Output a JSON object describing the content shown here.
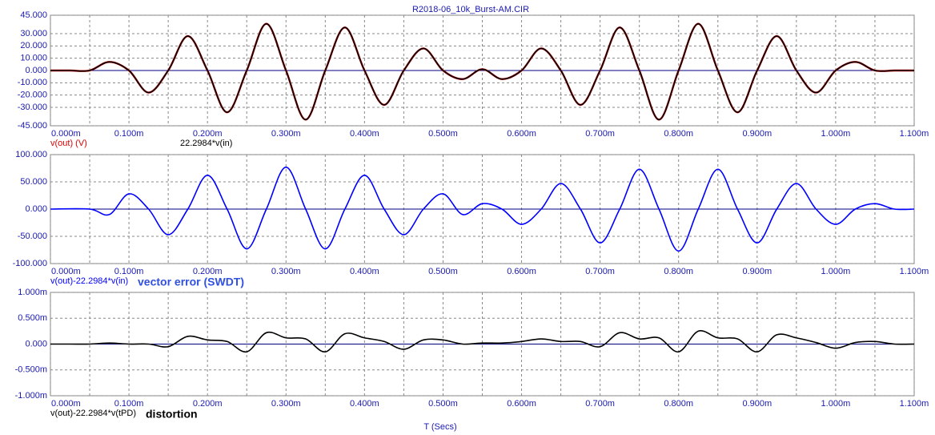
{
  "chart_data": [
    {
      "type": "line",
      "title": "R2018-06_10k_Burst-AM.CIR",
      "x": [
        0,
        0.025,
        0.05,
        0.075,
        0.1,
        0.125,
        0.15,
        0.175,
        0.2,
        0.225,
        0.25,
        0.275,
        0.3,
        0.325,
        0.35,
        0.375,
        0.4,
        0.425,
        0.45,
        0.475,
        0.5,
        0.525,
        0.55,
        0.575,
        0.6,
        0.625,
        0.65,
        0.675,
        0.7,
        0.725,
        0.75,
        0.775,
        0.8,
        0.825,
        0.85,
        0.875,
        0.9,
        0.925,
        0.95,
        0.975,
        1.0,
        1.025,
        1.05,
        1.075,
        1.1
      ],
      "series": [
        {
          "name": "v(out) (V)",
          "color": "#e00000",
          "values": [
            0,
            0,
            0,
            7,
            0,
            -18,
            0,
            28,
            0,
            -34,
            0,
            38,
            0,
            -40,
            0,
            35,
            0,
            -28,
            0,
            18,
            0,
            -7,
            1,
            -7,
            0,
            18,
            0,
            -28,
            0,
            35,
            0,
            -40,
            0,
            38,
            0,
            -34,
            0,
            28,
            0,
            -18,
            0,
            7,
            0,
            0,
            0
          ]
        },
        {
          "name": "22.2984*v(in)",
          "color": "#000000",
          "values": [
            0,
            0,
            0,
            7,
            0,
            -18,
            0,
            28,
            0,
            -34,
            0,
            38,
            0,
            -40,
            0,
            35,
            0,
            -28,
            0,
            18,
            0,
            -7,
            1,
            -7,
            0,
            18,
            0,
            -28,
            0,
            35,
            0,
            -40,
            0,
            38,
            0,
            -34,
            0,
            28,
            0,
            -18,
            0,
            7,
            0,
            0,
            0
          ]
        }
      ],
      "xlim": [
        0,
        1.1
      ],
      "xticks": [
        {
          "value": 0,
          "label": "0.000m"
        },
        {
          "value": 0.1,
          "label": "0.100m"
        },
        {
          "value": 0.2,
          "label": "0.200m"
        },
        {
          "value": 0.3,
          "label": "0.300m"
        },
        {
          "value": 0.4,
          "label": "0.400m"
        },
        {
          "value": 0.5,
          "label": "0.500m"
        },
        {
          "value": 0.6,
          "label": "0.600m"
        },
        {
          "value": 0.7,
          "label": "0.700m"
        },
        {
          "value": 0.8,
          "label": "0.800m"
        },
        {
          "value": 0.9,
          "label": "0.900m"
        },
        {
          "value": 1.0,
          "label": "1.000m"
        },
        {
          "value": 1.1,
          "label": "1.100m"
        }
      ],
      "xgrid_minor": [
        0.05,
        0.15,
        0.25,
        0.35,
        0.45,
        0.55,
        0.65,
        0.75,
        0.85,
        0.95,
        1.05
      ],
      "ylim": [
        -45,
        45
      ],
      "yticks": [
        {
          "value": 45,
          "label": "45.000"
        },
        {
          "value": 30,
          "label": "30.000"
        },
        {
          "value": 20,
          "label": "20.000"
        },
        {
          "value": 10,
          "label": "10.000"
        },
        {
          "value": 0,
          "label": "0.000"
        },
        {
          "value": -10,
          "label": "-10.000"
        },
        {
          "value": -20,
          "label": "-20.000"
        },
        {
          "value": -30,
          "label": "-30.000"
        },
        {
          "value": -45,
          "label": "-45.000"
        }
      ],
      "grid": true
    },
    {
      "type": "line",
      "annotation": "vector error (SWDT)",
      "x": [
        0,
        0.05,
        0.075,
        0.1,
        0.125,
        0.15,
        0.175,
        0.2,
        0.225,
        0.25,
        0.275,
        0.3,
        0.325,
        0.35,
        0.375,
        0.4,
        0.425,
        0.45,
        0.475,
        0.5,
        0.525,
        0.55,
        0.575,
        0.6,
        0.625,
        0.65,
        0.675,
        0.7,
        0.725,
        0.75,
        0.775,
        0.8,
        0.825,
        0.85,
        0.875,
        0.9,
        0.925,
        0.95,
        0.975,
        1.0,
        1.025,
        1.05,
        1.075,
        1.1
      ],
      "series": [
        {
          "name": "v(out)-22.2984*v(in)",
          "color": "#0000ff",
          "values": [
            0,
            0,
            -10,
            28,
            0,
            -47,
            0,
            62,
            0,
            -73,
            0,
            77,
            0,
            -73,
            0,
            62,
            0,
            -47,
            0,
            28,
            -10,
            10,
            0,
            -28,
            0,
            47,
            0,
            -62,
            0,
            73,
            0,
            -77,
            0,
            73,
            0,
            -62,
            0,
            47,
            0,
            -28,
            0,
            10,
            0,
            0
          ]
        }
      ],
      "xlim": [
        0,
        1.1
      ],
      "xticks": [
        {
          "value": 0,
          "label": "0.000m"
        },
        {
          "value": 0.1,
          "label": "0.100m"
        },
        {
          "value": 0.2,
          "label": "0.200m"
        },
        {
          "value": 0.3,
          "label": "0.300m"
        },
        {
          "value": 0.4,
          "label": "0.400m"
        },
        {
          "value": 0.5,
          "label": "0.500m"
        },
        {
          "value": 0.6,
          "label": "0.600m"
        },
        {
          "value": 0.7,
          "label": "0.700m"
        },
        {
          "value": 0.8,
          "label": "0.800m"
        },
        {
          "value": 0.9,
          "label": "0.900m"
        },
        {
          "value": 1.0,
          "label": "1.000m"
        },
        {
          "value": 1.1,
          "label": "1.100m"
        }
      ],
      "xgrid_minor": [
        0.05,
        0.15,
        0.25,
        0.35,
        0.45,
        0.55,
        0.65,
        0.75,
        0.85,
        0.95,
        1.05
      ],
      "ylim": [
        -100,
        100
      ],
      "yticks": [
        {
          "value": 100,
          "label": "100.000"
        },
        {
          "value": 50,
          "label": "50.000"
        },
        {
          "value": 0,
          "label": "0.000"
        },
        {
          "value": -50,
          "label": "-50.000"
        },
        {
          "value": -100,
          "label": "-100.000"
        }
      ],
      "grid": true
    },
    {
      "type": "line",
      "annotation": "distortion",
      "xlabel": "T (Secs)",
      "x": [
        0,
        0.025,
        0.05,
        0.075,
        0.1,
        0.125,
        0.15,
        0.175,
        0.2,
        0.225,
        0.25,
        0.275,
        0.3,
        0.325,
        0.35,
        0.375,
        0.4,
        0.425,
        0.45,
        0.475,
        0.5,
        0.525,
        0.55,
        0.575,
        0.6,
        0.625,
        0.65,
        0.675,
        0.7,
        0.725,
        0.75,
        0.775,
        0.8,
        0.825,
        0.85,
        0.875,
        0.9,
        0.925,
        0.95,
        0.975,
        1.0,
        1.025,
        1.05,
        1.075,
        1.1
      ],
      "series": [
        {
          "name": "v(out)-22.2984*v(tPD)",
          "color": "#000000",
          "values": [
            0,
            0,
            0,
            0.02,
            0,
            0,
            -0.05,
            0.15,
            0.08,
            0.05,
            -0.15,
            0.22,
            0.12,
            0.1,
            -0.15,
            0.2,
            0.12,
            0.05,
            -0.1,
            0.08,
            0.08,
            0,
            0.02,
            0.02,
            0.05,
            0.1,
            0.05,
            0.05,
            -0.05,
            0.22,
            0.1,
            0.12,
            -0.15,
            0.25,
            0.12,
            0.1,
            -0.15,
            0.18,
            0.12,
            0.03,
            -0.08,
            0.03,
            0.05,
            0,
            0
          ]
        }
      ],
      "xlim": [
        0,
        1.1
      ],
      "xticks": [
        {
          "value": 0,
          "label": "0.000m"
        },
        {
          "value": 0.1,
          "label": "0.100m"
        },
        {
          "value": 0.2,
          "label": "0.200m"
        },
        {
          "value": 0.3,
          "label": "0.300m"
        },
        {
          "value": 0.4,
          "label": "0.400m"
        },
        {
          "value": 0.5,
          "label": "0.500m"
        },
        {
          "value": 0.6,
          "label": "0.600m"
        },
        {
          "value": 0.7,
          "label": "0.700m"
        },
        {
          "value": 0.8,
          "label": "0.800m"
        },
        {
          "value": 0.9,
          "label": "0.900m"
        },
        {
          "value": 1.0,
          "label": "1.000m"
        },
        {
          "value": 1.1,
          "label": "1.100m"
        }
      ],
      "xgrid_minor": [
        0.05,
        0.15,
        0.25,
        0.35,
        0.45,
        0.55,
        0.65,
        0.75,
        0.85,
        0.95,
        1.05
      ],
      "ylim": [
        -1,
        1
      ],
      "yticks": [
        {
          "value": 1,
          "label": "1.000m"
        },
        {
          "value": 0.5,
          "label": "0.500m"
        },
        {
          "value": 0,
          "label": "0.000"
        },
        {
          "value": -0.5,
          "label": "-0.500m"
        },
        {
          "value": -1,
          "label": "-1.000m"
        }
      ],
      "grid": true
    }
  ]
}
